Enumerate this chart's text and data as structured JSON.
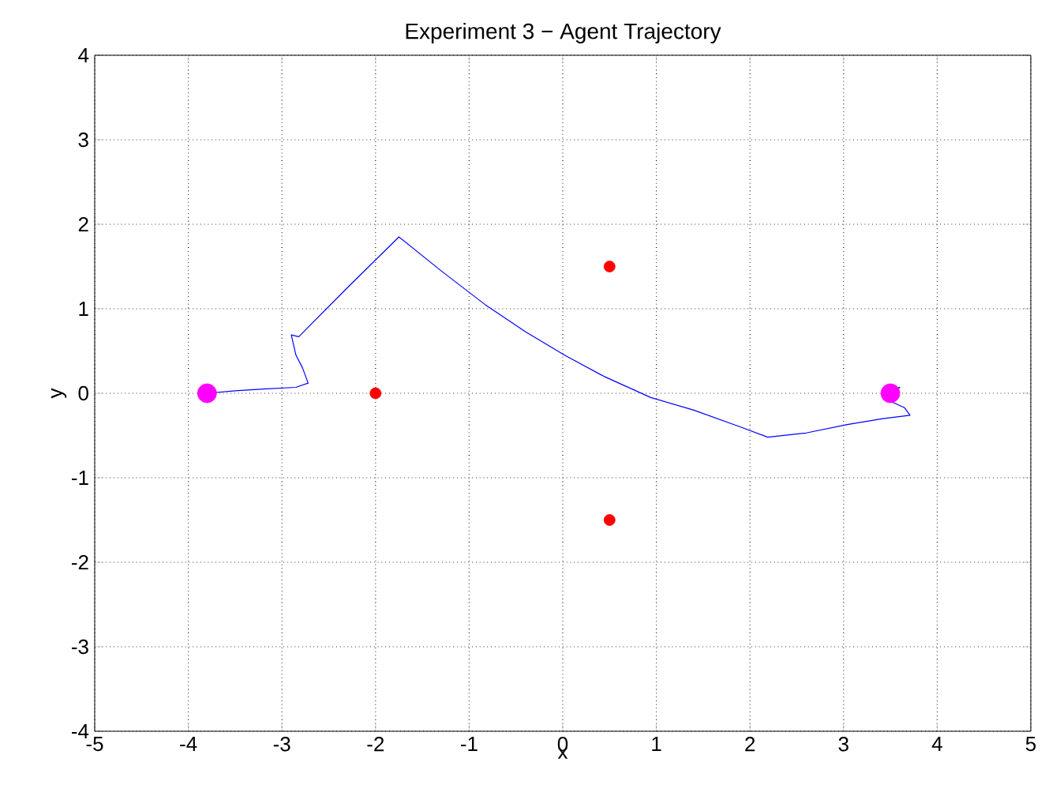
{
  "chart_data": {
    "type": "line",
    "title": "Experiment 3 − Agent Trajectory",
    "xlabel": "x",
    "ylabel": "y",
    "xlim": [
      -5,
      5
    ],
    "ylim": [
      -4,
      4
    ],
    "xticks": [
      -5,
      -4,
      -3,
      -2,
      -1,
      0,
      1,
      2,
      3,
      4,
      5
    ],
    "yticks": [
      -4,
      -3,
      -2,
      -1,
      0,
      1,
      2,
      3,
      4
    ],
    "grid": true,
    "series": [
      {
        "color": "#0000ff",
        "marker": "none",
        "x": [
          -3.8,
          -3.5,
          -3.2,
          -2.85,
          -2.72,
          -2.78,
          -2.85,
          -2.9,
          -2.82,
          -2.3,
          -1.75,
          -1.3,
          -0.96,
          -0.83,
          -0.4,
          0.02,
          0.44,
          0.94,
          1.4,
          1.9,
          2.19,
          2.6,
          3.04,
          3.42,
          3.71,
          3.65,
          3.47,
          3.6,
          3.43
        ],
        "values": [
          0.0,
          0.03,
          0.05,
          0.07,
          0.12,
          0.3,
          0.45,
          0.69,
          0.67,
          1.25,
          1.85,
          1.45,
          1.16,
          1.05,
          0.73,
          0.45,
          0.2,
          -0.05,
          -0.2,
          -0.4,
          -0.52,
          -0.47,
          -0.37,
          -0.3,
          -0.26,
          -0.17,
          -0.08,
          0.07,
          0.02
        ]
      },
      {
        "type": "scatter",
        "color": "#ff0000",
        "marker": "circle",
        "x": [
          -2,
          0.5,
          0.5
        ],
        "values": [
          0,
          1.5,
          -1.5
        ]
      },
      {
        "type": "scatter",
        "color": "#ff00ff",
        "marker": "circle",
        "x": [
          -3.8,
          3.5
        ],
        "values": [
          0,
          0
        ]
      }
    ]
  }
}
